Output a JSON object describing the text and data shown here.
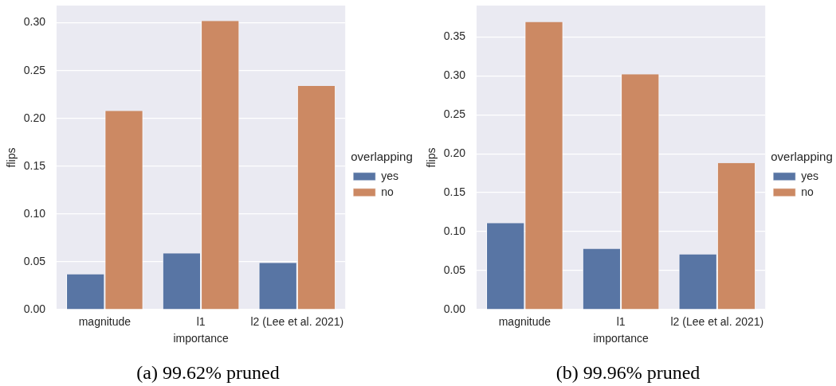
{
  "chart_data": [
    {
      "type": "bar",
      "title": "(a) 99.62% pruned",
      "xlabel": "importance",
      "ylabel": "flips",
      "legend_title": "overlapping",
      "categories": [
        "magnitude",
        "l1",
        "l2 (Lee et al. 2021)"
      ],
      "series": [
        {
          "name": "yes",
          "color": "#5875a4",
          "values": [
            0.037,
            0.059,
            0.049
          ]
        },
        {
          "name": "no",
          "color": "#cc8963",
          "values": [
            0.208,
            0.302,
            0.234
          ]
        }
      ],
      "ylim": [
        0,
        0.318
      ],
      "yticks": [
        {
          "value": 0,
          "label": "0.00"
        },
        0.05,
        {
          "value": 0.1,
          "label": "0.10"
        },
        0.15,
        {
          "value": 0.2,
          "label": "0.20"
        },
        0.25,
        {
          "value": 0.3,
          "label": "0.30"
        }
      ],
      "grid": "y",
      "legend": "right"
    },
    {
      "type": "bar",
      "title": "(b) 99.96% pruned",
      "xlabel": "importance",
      "ylabel": "flips",
      "legend_title": "overlapping",
      "categories": [
        "magnitude",
        "l1",
        "l2 (Lee et al. 2021)"
      ],
      "series": [
        {
          "name": "yes",
          "color": "#5875a4",
          "values": [
            0.111,
            0.078,
            0.071
          ]
        },
        {
          "name": "no",
          "color": "#cc8963",
          "values": [
            0.369,
            0.302,
            0.188
          ]
        }
      ],
      "ylim": [
        0,
        0.39
      ],
      "yticks": [
        {
          "value": 0,
          "label": "0.00"
        },
        0.05,
        {
          "value": 0.1,
          "label": "0.10"
        },
        0.15,
        {
          "value": 0.2,
          "label": "0.20"
        },
        0.25,
        {
          "value": 0.3,
          "label": "0.30"
        },
        0.35
      ],
      "grid": "y",
      "legend": "right"
    }
  ]
}
